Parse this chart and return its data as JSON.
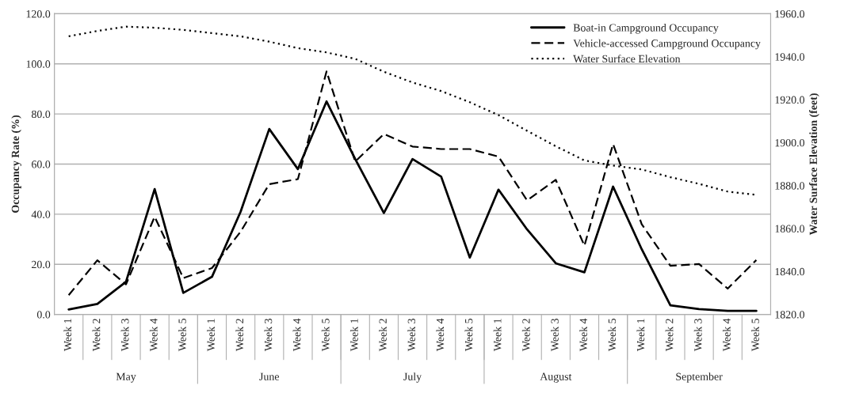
{
  "chart_data": {
    "type": "line",
    "xlabel": null,
    "ylabel": "Occupancy Rate (%)",
    "y2label": "Water Surface Elevation (feet)",
    "categories": [
      "Week 1",
      "Week 2",
      "Week 3",
      "Week 4",
      "Week 5",
      "Week 1",
      "Week 2",
      "Week 3",
      "Week 4",
      "Week 5",
      "Week 1",
      "Week 2",
      "Week 3",
      "Week 4",
      "Week 5",
      "Week 1",
      "Week 2",
      "Week 3",
      "Week 4",
      "Week 5",
      "Week 1",
      "Week 2",
      "Week 3",
      "Week 4",
      "Week 5"
    ],
    "annotations": [
      "May",
      "June",
      "July",
      "August",
      "September"
    ],
    "series": [
      {
        "name": "Boat-in Campground Occupancy",
        "color": "#000000",
        "line_style": "solid",
        "values": [
          2.0,
          4.2,
          13,
          50,
          8.6,
          15,
          41,
          74,
          58,
          85,
          62,
          40.5,
          62,
          55,
          22.7,
          49.8,
          33.9,
          20.4,
          16.8,
          51,
          26,
          3.6,
          2.1,
          1.4,
          1.4
        ]
      },
      {
        "name": "Vehicle-accessed Campground Occupancy",
        "color": "#000000",
        "line_style": "dashed",
        "values": [
          7.7,
          21.6,
          12,
          39,
          14.5,
          18.5,
          33,
          52,
          54,
          97,
          61,
          72,
          67,
          66,
          66,
          63,
          45.5,
          53.7,
          27.4,
          68,
          36,
          19.4,
          20.1,
          10.3,
          21.7
        ]
      },
      {
        "name": "Water Surface Elevation",
        "color": "#000000",
        "line_style": "dotted",
        "axis": "y2",
        "values": [
          1949.5,
          1952,
          1954,
          1953.5,
          1952.5,
          1951,
          1949.5,
          1947,
          1944,
          1942,
          1939,
          1933,
          1928,
          1924,
          1918.8,
          1912.8,
          1905.5,
          1898.3,
          1891.7,
          1889.3,
          1887.5,
          1883.9,
          1880.8,
          1877.2,
          1875.7
        ]
      }
    ],
    "ylim": [
      0,
      120
    ],
    "yticks": [
      {
        "value": 0,
        "label": "0.0"
      },
      {
        "value": 20,
        "label": "20.0"
      },
      {
        "value": 40,
        "label": "40.0"
      },
      {
        "value": 60,
        "label": "60.0"
      },
      {
        "value": 80,
        "label": "80.0"
      },
      {
        "value": 100,
        "label": "100.0"
      },
      {
        "value": 120,
        "label": "120.0"
      }
    ],
    "y2lim": [
      1820,
      1960
    ],
    "y2ticks": [
      {
        "value": 1820,
        "label": "1820.0"
      },
      {
        "value": 1840,
        "label": "1840.0"
      },
      {
        "value": 1860,
        "label": "1860.0"
      },
      {
        "value": 1880,
        "label": "1880.0"
      },
      {
        "value": 1900,
        "label": "1900.0"
      },
      {
        "value": 1920,
        "label": "1920.0"
      },
      {
        "value": 1940,
        "label": "1940.0"
      },
      {
        "value": 1960,
        "label": "1960.0"
      }
    ],
    "grid": "y",
    "legend": "top right",
    "marker": "none"
  }
}
